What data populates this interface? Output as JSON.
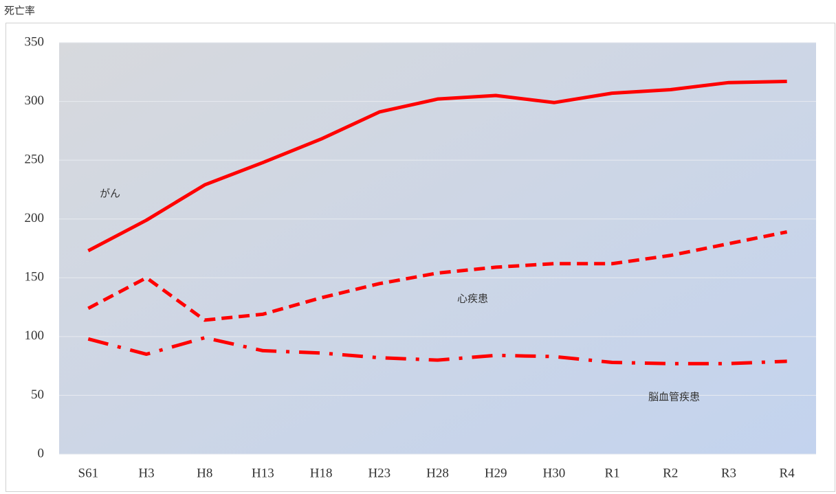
{
  "chart_data": {
    "type": "line",
    "y_label": "死亡率",
    "categories": [
      "S61",
      "H3",
      "H8",
      "H13",
      "H18",
      "H23",
      "H28",
      "H29",
      "H30",
      "R1",
      "R2",
      "R3",
      "R4"
    ],
    "series": [
      {
        "name": "がん",
        "color": "#ff0000",
        "style": "solid",
        "values": [
          173,
          199,
          229,
          248,
          268,
          291,
          302,
          305,
          299,
          307,
          310,
          316,
          317
        ]
      },
      {
        "name": "心疾患",
        "color": "#ff0000",
        "style": "dashed",
        "values": [
          124,
          150,
          114,
          119,
          133,
          145,
          154,
          159,
          162,
          162,
          169,
          179,
          189
        ]
      },
      {
        "name": "脳血管疾患",
        "color": "#ff0000",
        "style": "dashdot",
        "values": [
          98,
          85,
          99,
          88,
          86,
          82,
          80,
          84,
          83,
          78,
          77,
          77,
          79
        ]
      }
    ],
    "ylim": [
      0,
      350
    ],
    "yticks": [
      0,
      50,
      100,
      150,
      200,
      250,
      300,
      350
    ],
    "grid": true
  }
}
